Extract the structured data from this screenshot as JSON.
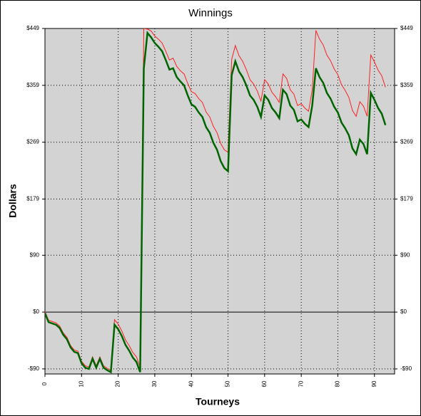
{
  "chart_data": {
    "type": "line",
    "title": "Winnings",
    "xlabel": "Tourneys",
    "ylabel": "Dollars",
    "x": [
      0,
      1,
      2,
      3,
      4,
      5,
      6,
      7,
      8,
      9,
      10,
      11,
      12,
      13,
      14,
      15,
      16,
      17,
      18,
      19,
      20,
      21,
      22,
      23,
      24,
      25,
      26,
      27,
      28,
      29,
      30,
      31,
      32,
      33,
      34,
      35,
      36,
      37,
      38,
      39,
      40,
      41,
      42,
      43,
      44,
      45,
      46,
      47,
      48,
      49,
      50,
      51,
      52,
      53,
      54,
      55,
      56,
      57,
      58,
      59,
      60,
      61,
      62,
      63,
      64,
      65,
      66,
      67,
      68,
      69,
      70,
      71,
      72,
      73,
      74,
      75,
      76,
      77,
      78,
      79,
      80,
      81,
      82,
      83,
      84,
      85,
      86,
      87,
      88,
      89,
      90,
      91,
      92,
      93
    ],
    "series": [
      {
        "name": "Winnings (red)",
        "color": "#ff2020",
        "width": 1,
        "values": [
          1,
          -13,
          -15,
          -17,
          -22,
          -33,
          -40,
          -53,
          -60,
          -62,
          -78,
          -85,
          -87,
          -71,
          -85,
          -71,
          -85,
          -89,
          -92,
          -12,
          -19,
          -30,
          -44,
          -53,
          -64,
          -71,
          -87,
          449,
          448,
          445,
          437,
          432,
          426,
          413,
          399,
          402,
          389,
          382,
          377,
          362,
          349,
          346,
          338,
          332,
          317,
          309,
          294,
          284,
          267,
          257,
          253,
          400,
          422,
          406,
          397,
          384,
          368,
          361,
          350,
          334,
          368,
          361,
          348,
          341,
          332,
          377,
          370,
          352,
          345,
          327,
          330,
          323,
          318,
          352,
          446,
          432,
          423,
          407,
          398,
          385,
          376,
          360,
          351,
          340,
          319,
          310,
          333,
          326,
          310,
          407,
          396,
          383,
          374,
          356
        ]
      },
      {
        "name": "Winnings (green)",
        "color": "#006400",
        "width": 2.5,
        "values": [
          -2,
          -16,
          -18,
          -20,
          -25,
          -36,
          -43,
          -56,
          -63,
          -65,
          -81,
          -88,
          -90,
          -74,
          -88,
          -74,
          -88,
          -92,
          -95,
          -20,
          -27,
          -38,
          -52,
          -61,
          -72,
          -79,
          -95,
          386,
          442,
          435,
          426,
          420,
          413,
          399,
          384,
          386,
          372,
          365,
          359,
          343,
          329,
          325,
          316,
          309,
          293,
          284,
          268,
          257,
          239,
          228,
          223,
          375,
          397,
          381,
          372,
          359,
          343,
          336,
          325,
          309,
          343,
          336,
          323,
          316,
          307,
          352,
          345,
          327,
          320,
          302,
          305,
          298,
          293,
          327,
          386,
          372,
          363,
          347,
          338,
          325,
          316,
          300,
          291,
          280,
          259,
          250,
          273,
          266,
          250,
          347,
          336,
          323,
          314,
          296
        ]
      }
    ],
    "xlim": [
      0,
      95.5
    ],
    "xticks": [
      0,
      10,
      20,
      30,
      40,
      50,
      60,
      70,
      80,
      90
    ],
    "ylim": [
      -98,
      449
    ],
    "yticks": [
      {
        "value": 449,
        "label": "$449"
      },
      {
        "value": 359,
        "label": "$359"
      },
      {
        "value": 269,
        "label": "$269"
      },
      {
        "value": 179,
        "label": "$179"
      },
      {
        "value": 90,
        "label": "$90"
      },
      {
        "value": 0,
        "label": "$0"
      },
      {
        "value": -90,
        "label": "-$90"
      }
    ],
    "grid": true
  }
}
